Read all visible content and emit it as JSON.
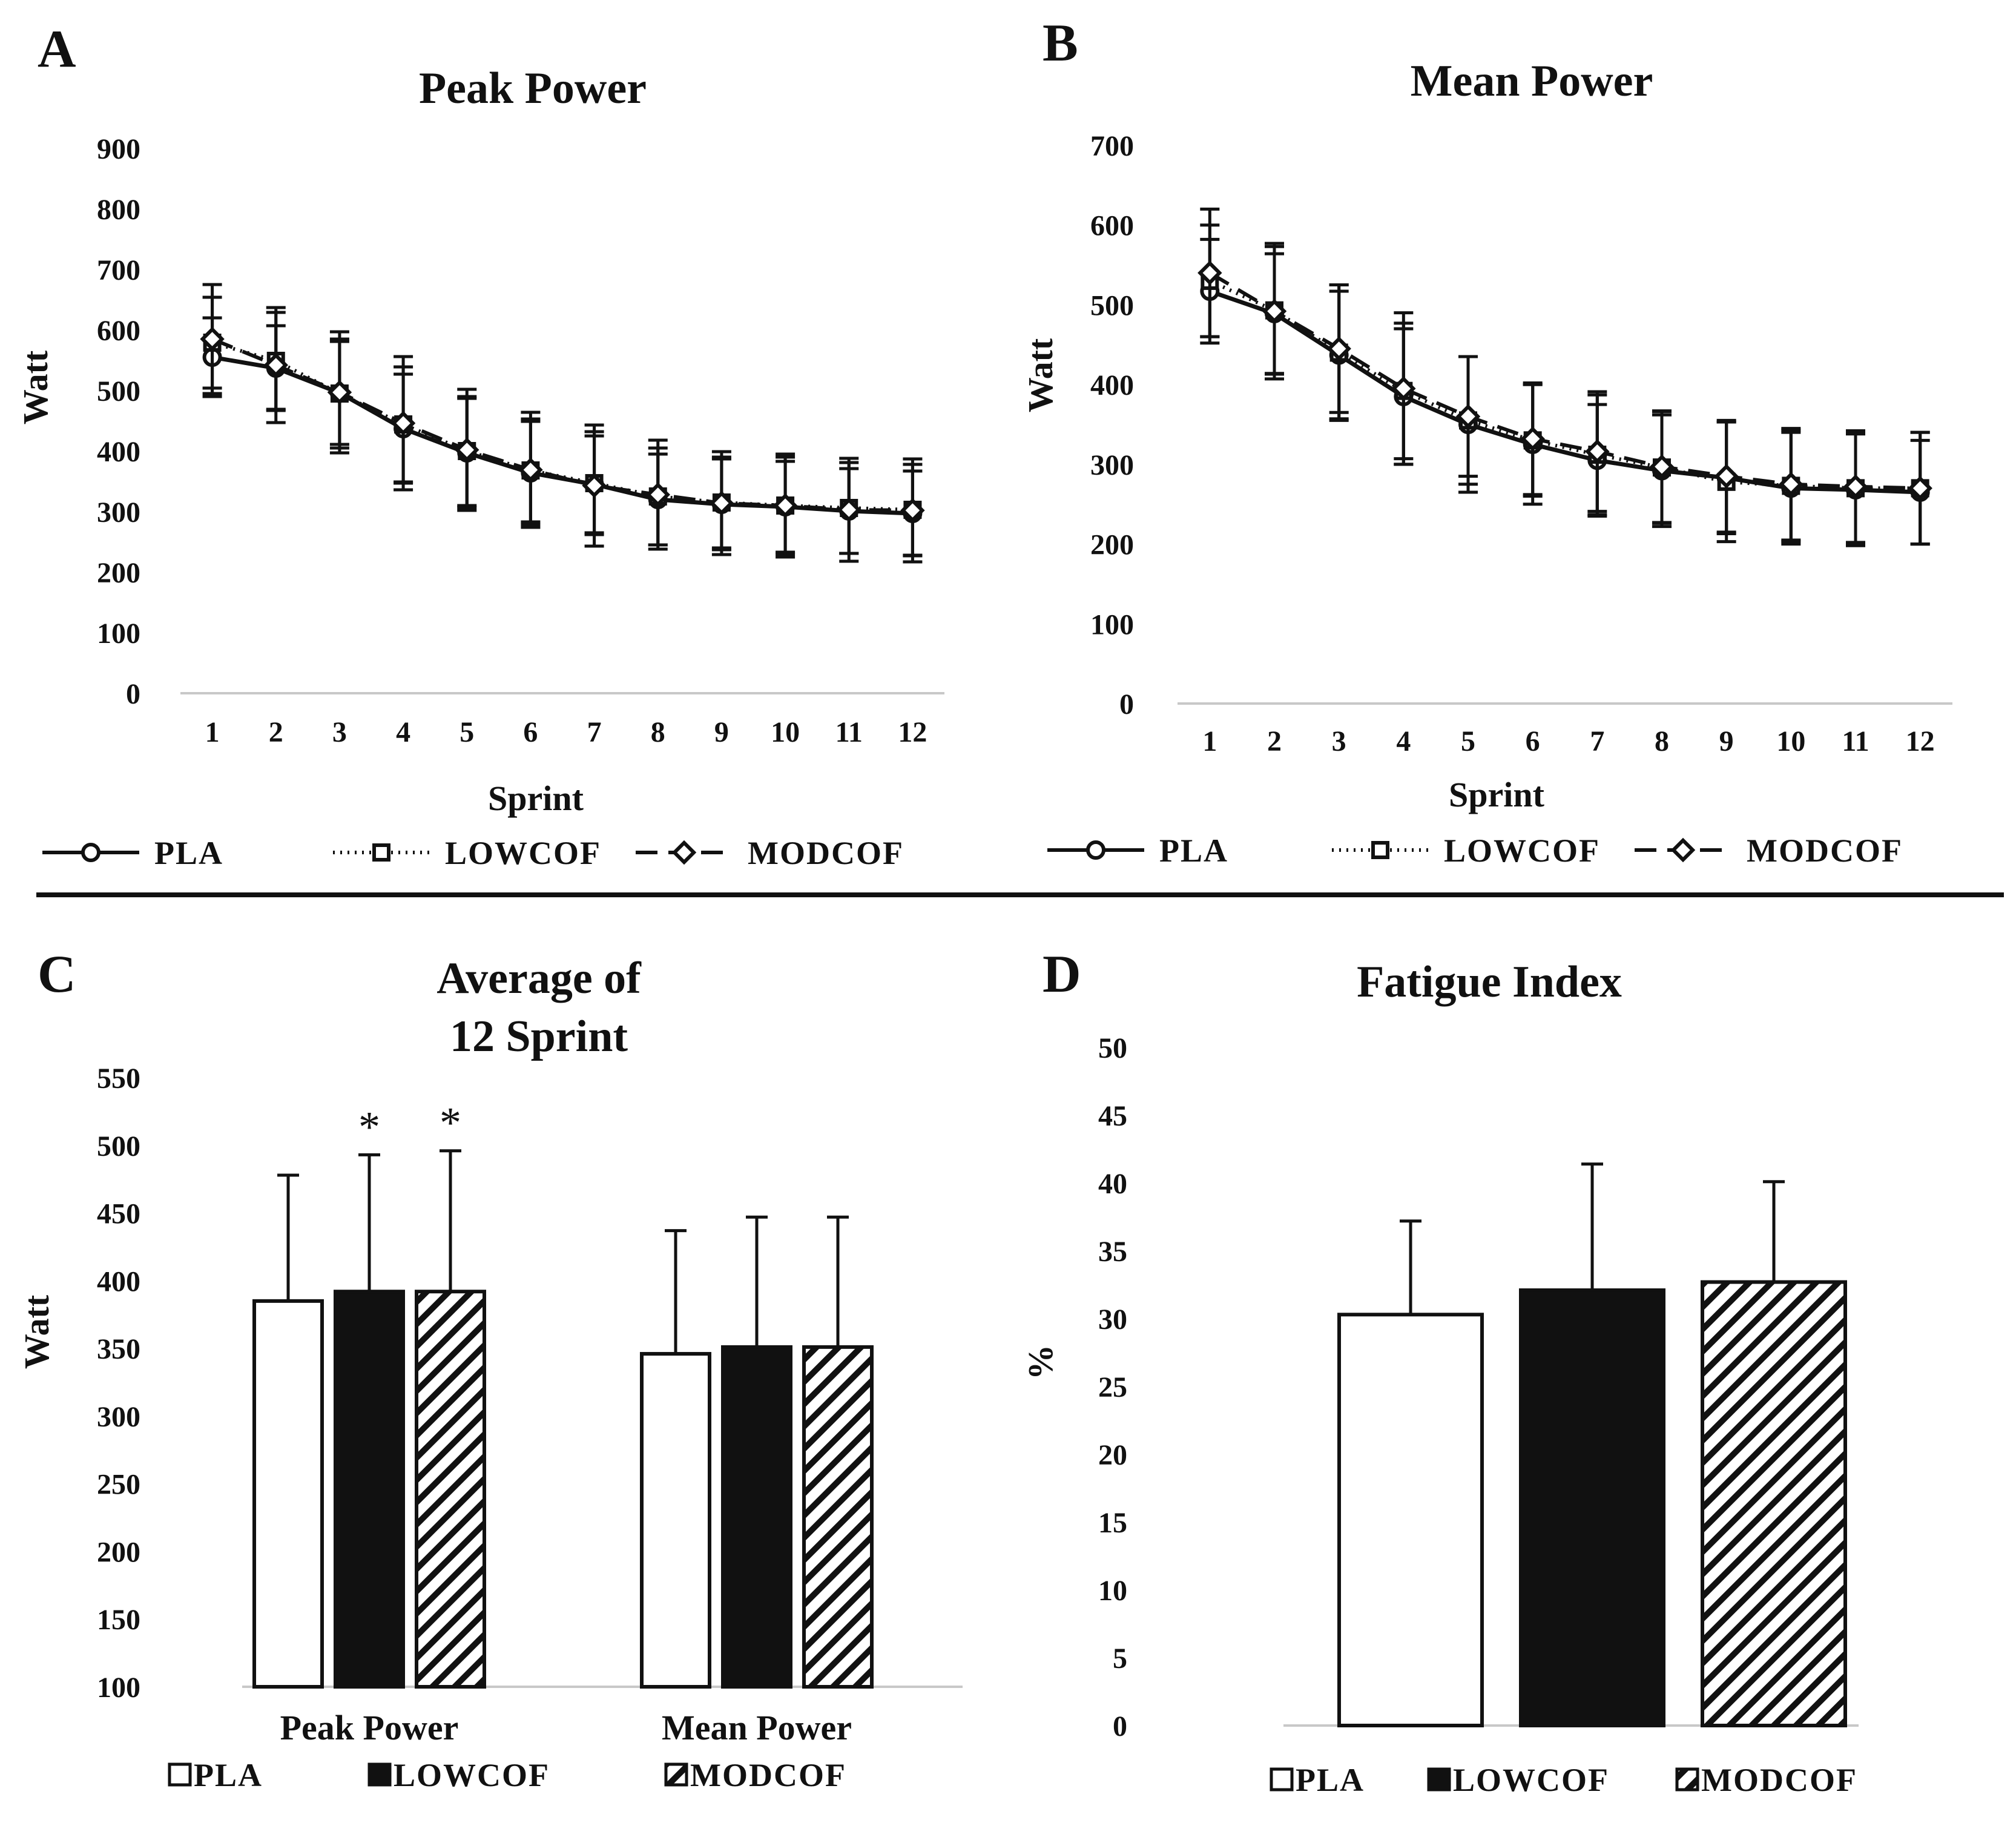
{
  "figure": {
    "divider_color": "#111111",
    "colors": {
      "ink": "#111111",
      "white": "#ffffff",
      "grid": "#c8c8c8"
    }
  },
  "chart_data": [
    {
      "panel": "A",
      "type": "line",
      "title": "Peak Power",
      "xlabel": "Sprint",
      "ylabel": "Watt",
      "categories": [
        "1",
        "2",
        "3",
        "4",
        "5",
        "6",
        "7",
        "8",
        "9",
        "10",
        "11",
        "12"
      ],
      "yticks": [
        0,
        100,
        200,
        300,
        400,
        500,
        600,
        700,
        800,
        900
      ],
      "ylim": [
        0,
        900
      ],
      "series": [
        {
          "name": "PLA",
          "line": "solid",
          "marker": "circle",
          "values": [
            555,
            537,
            496,
            437,
            397,
            364,
            345,
            320,
            312,
            308,
            301,
            297
          ],
          "errors": [
            65,
            70,
            85,
            90,
            90,
            85,
            80,
            75,
            75,
            75,
            70,
            70
          ]
        },
        {
          "name": "LOWCOF",
          "line": "dotted",
          "marker": "square",
          "values": [
            579,
            549,
            495,
            444,
            400,
            368,
            347,
            325,
            315,
            310,
            306,
            303
          ],
          "errors": [
            75,
            80,
            90,
            95,
            90,
            85,
            85,
            80,
            75,
            80,
            75,
            75
          ]
        },
        {
          "name": "MODCOF",
          "line": "dashed",
          "marker": "diamond",
          "values": [
            585,
            542,
            497,
            446,
            402,
            369,
            343,
            328,
            314,
            310,
            303,
            302
          ],
          "errors": [
            90,
            95,
            100,
            110,
            100,
            95,
            100,
            90,
            85,
            85,
            85,
            85
          ]
        }
      ],
      "legend": [
        "PLA",
        "LOWCOF",
        "MODCOF"
      ],
      "legend_position": "bottom"
    },
    {
      "panel": "B",
      "type": "line",
      "title": "Mean Power",
      "xlabel": "Sprint",
      "ylabel": "Watt",
      "categories": [
        "1",
        "2",
        "3",
        "4",
        "5",
        "6",
        "7",
        "8",
        "9",
        "10",
        "11",
        "12"
      ],
      "yticks": [
        0,
        100,
        200,
        300,
        400,
        500,
        600,
        700
      ],
      "ylim": [
        0,
        700
      ],
      "series": [
        {
          "name": "PLA",
          "line": "solid",
          "marker": "circle",
          "values": [
            517,
            489,
            437,
            385,
            350,
            325,
            305,
            292,
            283,
            270,
            268,
            265
          ],
          "errors": [
            65,
            75,
            80,
            85,
            85,
            75,
            70,
            70,
            70,
            70,
            70,
            65
          ]
        },
        {
          "name": "LOWCOF",
          "line": "dotted",
          "marker": "square",
          "values": [
            530,
            493,
            440,
            392,
            355,
            330,
            312,
            296,
            278,
            273,
            270,
            270
          ],
          "errors": [
            70,
            80,
            85,
            85,
            80,
            70,
            75,
            70,
            75,
            70,
            70,
            70
          ]
        },
        {
          "name": "MODCOF",
          "line": "dashed",
          "marker": "diamond",
          "values": [
            540,
            492,
            445,
            395,
            360,
            332,
            316,
            297,
            285,
            275,
            272,
            270
          ],
          "errors": [
            80,
            85,
            80,
            95,
            75,
            70,
            75,
            70,
            70,
            70,
            70,
            70
          ]
        }
      ],
      "legend": [
        "PLA",
        "LOWCOF",
        "MODCOF"
      ],
      "legend_position": "bottom"
    },
    {
      "panel": "C",
      "type": "bar",
      "title": "Average of 12 Sprint",
      "title_lines": [
        "Average of",
        "12 Sprint"
      ],
      "xlabel": "",
      "ylabel": "Watt",
      "categories": [
        "Peak Power",
        "Mean Power"
      ],
      "yticks": [
        100,
        150,
        200,
        250,
        300,
        350,
        400,
        450,
        500,
        550
      ],
      "ylim": [
        100,
        550
      ],
      "series": [
        {
          "name": "PLA",
          "fill": "white",
          "values": [
            385,
            346
          ],
          "errors": [
            93,
            91
          ]
        },
        {
          "name": "LOWCOF",
          "fill": "black",
          "values": [
            392,
            351
          ],
          "errors": [
            101,
            96
          ]
        },
        {
          "name": "MODCOF",
          "fill": "hatch",
          "values": [
            392,
            351
          ],
          "errors": [
            104,
            96
          ]
        }
      ],
      "annotations": [
        {
          "category": "Peak Power",
          "series": "LOWCOF",
          "text": "*"
        },
        {
          "category": "Peak Power",
          "series": "MODCOF",
          "text": "*"
        }
      ],
      "legend": [
        "PLA",
        "LOWCOF",
        "MODCOF"
      ],
      "legend_position": "bottom"
    },
    {
      "panel": "D",
      "type": "bar",
      "title": "Fatigue Index",
      "xlabel": "",
      "ylabel": "%",
      "categories": [
        ""
      ],
      "yticks": [
        0,
        5,
        10,
        15,
        20,
        25,
        30,
        35,
        40,
        45,
        50
      ],
      "ylim": [
        0,
        50
      ],
      "series": [
        {
          "name": "PLA",
          "fill": "white",
          "values": [
            30.3
          ],
          "errors": [
            6.9
          ]
        },
        {
          "name": "LOWCOF",
          "fill": "black",
          "values": [
            32.1
          ],
          "errors": [
            9.3
          ]
        },
        {
          "name": "MODCOF",
          "fill": "hatch",
          "values": [
            32.7
          ],
          "errors": [
            7.4
          ]
        }
      ],
      "legend": [
        "PLA",
        "LOWCOF",
        "MODCOF"
      ],
      "legend_position": "bottom"
    }
  ]
}
